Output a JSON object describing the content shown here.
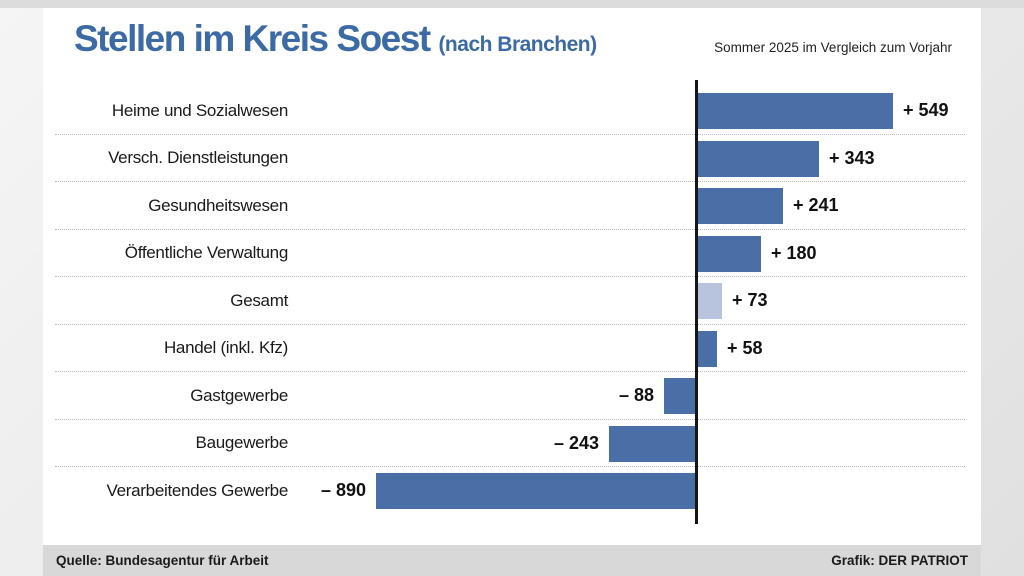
{
  "header": {
    "title": "Stellen im Kreis Soest",
    "title_suffix": "(nach Branchen)",
    "subtitle": "Sommer 2025 im Vergleich zum Vorjahr"
  },
  "footer": {
    "source": "Quelle: Bundesagentur für Arbeit",
    "credit": "Grafik: DER PATRIOT"
  },
  "colors": {
    "bar": "#4a6fa6",
    "bar_highlight": "#b8c4de",
    "title_blue": "#3b6aa5",
    "axis": "#161616",
    "footer_bg": "#d8d8d8"
  },
  "chart_data": {
    "type": "bar",
    "orientation": "horizontal",
    "title": "Stellen im Kreis Soest (nach Branchen)",
    "subtitle": "Sommer 2025 im Vergleich zum Vorjahr",
    "categories": [
      "Heime und Sozialwesen",
      "Versch. Dienstleistungen",
      "Gesundheitswesen",
      "Öffentliche Verwaltung",
      "Gesamt",
      "Handel (inkl. Kfz)",
      "Gastgewerbe",
      "Baugewerbe",
      "Verarbeitendes Gewerbe"
    ],
    "values": [
      549,
      343,
      241,
      180,
      73,
      58,
      -88,
      -243,
      -890
    ],
    "value_labels": [
      "+ 549",
      "+ 343",
      "+ 241",
      "+ 180",
      "+ 73",
      "+ 58",
      "– 88",
      "– 243",
      "– 890"
    ],
    "highlight_index": 4,
    "highlight_category": "Gesamt",
    "xlim": [
      -930,
      760
    ],
    "grid": false,
    "legend": "none",
    "value_label_position": "outside-end"
  }
}
